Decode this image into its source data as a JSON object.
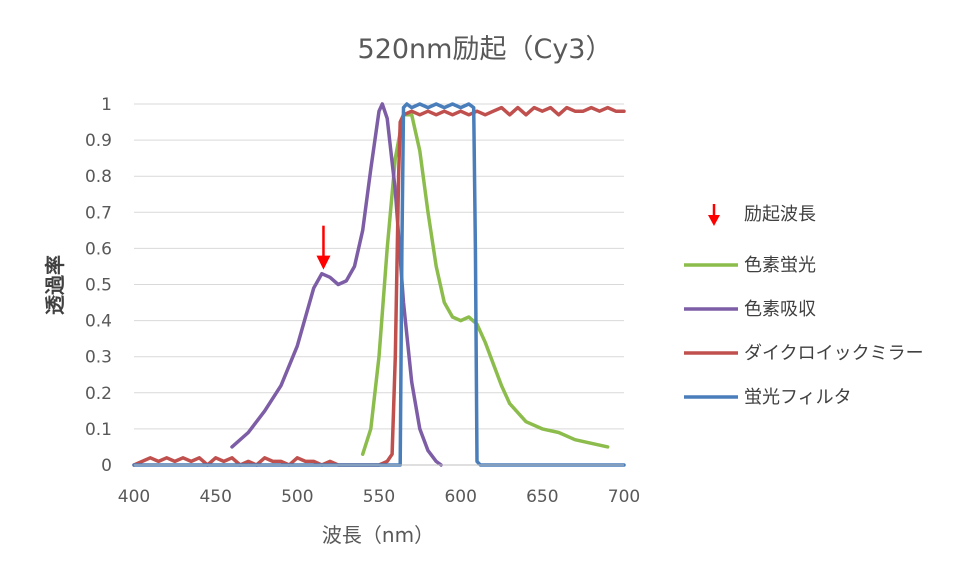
{
  "chart_data": {
    "type": "line",
    "title": "520nm励起（Cy3）",
    "xlabel": "波長（nm）",
    "ylabel": "透過率",
    "xlim": [
      400,
      700
    ],
    "ylim": [
      0,
      1
    ],
    "x_ticks": [
      "400",
      "450",
      "500",
      "550",
      "600",
      "650",
      "700"
    ],
    "y_ticks": [
      "0",
      "0.1",
      "0.2",
      "0.3",
      "0.4",
      "0.5",
      "0.6",
      "0.7",
      "0.8",
      "0.9",
      "1"
    ],
    "grid": true,
    "legend_position": "right",
    "annotation": {
      "label": "励起波長",
      "x": 520,
      "y": 0.53,
      "color": "#ff0000"
    },
    "series": [
      {
        "name": "色素蛍光",
        "color": "#8cbd4c",
        "x": [
          540,
          545,
          550,
          555,
          560,
          565,
          570,
          575,
          580,
          585,
          590,
          595,
          600,
          605,
          610,
          615,
          620,
          625,
          630,
          640,
          650,
          660,
          670,
          680,
          690
        ],
        "y": [
          0.03,
          0.1,
          0.3,
          0.6,
          0.85,
          0.97,
          0.97,
          0.87,
          0.7,
          0.55,
          0.45,
          0.41,
          0.4,
          0.41,
          0.39,
          0.34,
          0.28,
          0.22,
          0.17,
          0.12,
          0.1,
          0.09,
          0.07,
          0.06,
          0.05
        ]
      },
      {
        "name": "色素吸収",
        "color": "#7d5ea6",
        "x": [
          460,
          470,
          480,
          490,
          500,
          505,
          510,
          515,
          520,
          525,
          530,
          535,
          540,
          545,
          550,
          552,
          555,
          560,
          565,
          570,
          575,
          580,
          585,
          588
        ],
        "y": [
          0.05,
          0.09,
          0.15,
          0.22,
          0.33,
          0.41,
          0.49,
          0.53,
          0.52,
          0.5,
          0.51,
          0.55,
          0.65,
          0.82,
          0.98,
          1.0,
          0.96,
          0.76,
          0.45,
          0.23,
          0.1,
          0.04,
          0.01,
          0.0
        ]
      },
      {
        "name": "ダイクロイックミラー",
        "color": "#c0504d",
        "x": [
          400,
          405,
          410,
          415,
          420,
          425,
          430,
          435,
          440,
          445,
          450,
          455,
          460,
          465,
          470,
          475,
          480,
          485,
          490,
          495,
          500,
          505,
          510,
          515,
          520,
          525,
          530,
          535,
          540,
          545,
          550,
          555,
          558,
          560,
          562,
          563,
          565,
          570,
          575,
          580,
          585,
          590,
          595,
          600,
          605,
          610,
          615,
          620,
          625,
          630,
          635,
          640,
          645,
          650,
          655,
          660,
          665,
          670,
          675,
          680,
          685,
          690,
          695,
          700
        ],
        "y": [
          0.0,
          0.01,
          0.02,
          0.01,
          0.02,
          0.01,
          0.02,
          0.01,
          0.02,
          0.0,
          0.02,
          0.01,
          0.02,
          0.0,
          0.01,
          0.0,
          0.02,
          0.01,
          0.01,
          0.0,
          0.02,
          0.01,
          0.01,
          0.0,
          0.01,
          0.0,
          0.0,
          0.0,
          0.0,
          0.0,
          0.0,
          0.01,
          0.03,
          0.3,
          0.8,
          0.95,
          0.97,
          0.98,
          0.97,
          0.98,
          0.97,
          0.98,
          0.97,
          0.98,
          0.97,
          0.98,
          0.97,
          0.98,
          0.99,
          0.97,
          0.99,
          0.97,
          0.99,
          0.98,
          0.99,
          0.97,
          0.99,
          0.98,
          0.98,
          0.99,
          0.98,
          0.99,
          0.98,
          0.98
        ]
      },
      {
        "name": "蛍光フィルタ",
        "color": "#4a7ebb",
        "x": [
          400,
          563,
          564,
          565,
          567,
          570,
          575,
          580,
          585,
          590,
          595,
          600,
          605,
          608,
          609,
          610,
          612,
          700
        ],
        "y": [
          0.0,
          0.0,
          0.6,
          0.99,
          1.0,
          0.99,
          1.0,
          0.99,
          1.0,
          0.99,
          1.0,
          0.99,
          1.0,
          0.99,
          0.6,
          0.01,
          0.0,
          0.0
        ]
      }
    ]
  }
}
